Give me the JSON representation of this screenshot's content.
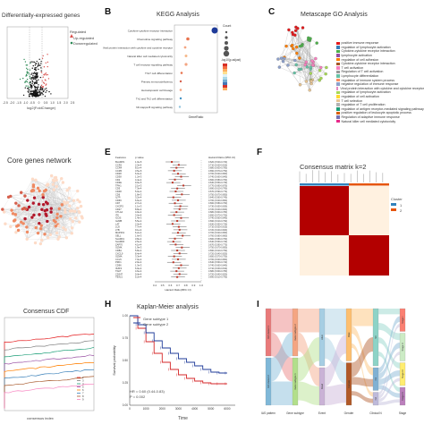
{
  "panels": {
    "A": {
      "label": "",
      "title": "Differentially-expressed genes",
      "legend_title": "Regulated",
      "legend_up": "Up-regulated",
      "legend_down": "Downregulated",
      "xlabel": "log2(FoldChange)",
      "xticks": [
        "-2.5",
        "-2.0",
        "-1.5",
        "-1.0",
        "-0.5",
        "0",
        "0.5",
        "1.0",
        "1.5",
        "2.0",
        "2.5"
      ],
      "colors": {
        "up": "#d9534f",
        "down": "#2e8b57",
        "ns": "#111111"
      }
    },
    "B": {
      "label": "B",
      "title": "KEGG Analysis",
      "terms": [
        "Cytokine-cytokine receptor interaction",
        "Chemokine signaling pathway",
        "Viral protein interaction with cytokine and cytokine receptor",
        "Natural killer cell mediated cytotoxicity",
        "T cell receptor signaling pathway",
        "Th17 cell differentiation",
        "Primary immunodeficiency",
        "Hematopoietic cell lineage",
        "Th1 and Th2 cell differentiation",
        "NF-kappa B signaling pathway"
      ],
      "xlabel": "GeneRatio",
      "legend_count": "Count",
      "legend_padj": "-log10(p.adjust)"
    },
    "C": {
      "label": "C",
      "title": "Metascape GO Analysis",
      "terms": [
        "positive immune response",
        "regulation of lymphocyte activation",
        "Cytokine-cytokine receptor interaction",
        "lymphocyte activation",
        "regulation of cell adhesion",
        "Cytokine-cytokine receptor interaction",
        "T cell activation",
        "Regulation of T cell activation",
        "Lymphocyte differentiation",
        "regulation of immune system process",
        "negative regulation of immune response",
        "Viral protein interaction with cytokine and cytokine receptor",
        "regulation of lymphocyte activation",
        "regulation of cell activation",
        "T cell selection",
        "regulation of T cell proliferation",
        "regulation of antigen receptor-mediated signaling pathway",
        "positive regulation of leukocyte apoptotic process",
        "Regulation of adaptive immune response",
        "Natural killer cell mediated cytotoxicity"
      ],
      "colors": [
        "#e41a1c",
        "#377eb8",
        "#4daf4a",
        "#984ea3",
        "#ff7f00",
        "#a65628",
        "#f781bf",
        "#999999",
        "#66c2a5",
        "#fc8d62",
        "#8da0cb",
        "#e78ac3",
        "#a6d854",
        "#ffd92f",
        "#e5c494",
        "#b3b3b3",
        "#1b9e77",
        "#d95f02",
        "#7570b3",
        "#e7298a"
      ]
    },
    "D": {
      "label": "",
      "title": "Core genes network"
    },
    "E": {
      "label": "E",
      "col_gene": "Features",
      "col_p": "p value",
      "col_hr": "Hazard Ratio (95% CI)",
      "genes": [
        "BLAMP1",
        "CCR2",
        "CCR4",
        "CCR5",
        "CD28",
        "CD38",
        "CD2",
        "CD3E",
        "TPH1",
        "CD5",
        "CD48",
        "CD6",
        "IL7R",
        "CD69",
        "CD7",
        "CXCR3",
        "CD27",
        "CTLA4",
        "ITK",
        "ICOS",
        "IL2RB",
        "LAT",
        "LCK",
        "LTB",
        "MAP4K1",
        "SELL",
        "SLAMF1",
        "SLAMF6",
        "ZAP70",
        "GZMK",
        "CD8A",
        "CXCL9",
        "GZMA",
        "CCL5",
        "PRF1",
        "CD96",
        "IKZF3",
        "TIGIT",
        "CD247",
        "TBX21"
      ],
      "p_values": [
        "1.0e-5",
        "2.3e-4",
        "8.1e-4",
        "3.5e-5",
        "6.0e-4",
        "1.2e-3",
        "4.4e-4",
        "9.9e-5",
        "2.1e-3",
        "7.3e-4",
        "5.0e-4",
        "1.8e-3",
        "3.2e-4",
        "6.6e-4",
        "2.7e-4",
        "1.1e-3",
        "8.8e-4",
        "4.9e-4",
        "3.0e-4",
        "1.4e-3",
        "5.5e-4",
        "2.0e-4",
        "7.7e-4",
        "9.1e-4",
        "6.2e-4",
        "1.6e-3",
        "3.8e-4",
        "2.5e-4",
        "4.1e-4",
        "1.9e-3",
        "5.8e-4",
        "8.4e-4",
        "3.3e-4",
        "7.0e-4",
        "2.9e-4",
        "1.3e-3",
        "6.9e-4",
        "4.6e-4",
        "9.4e-4",
        "5.2e-4"
      ],
      "hr": [
        0.62,
        0.71,
        0.68,
        0.65,
        0.7,
        0.74,
        0.66,
        0.63,
        0.77,
        0.69,
        0.67,
        0.75,
        0.64,
        0.7,
        0.66,
        0.73,
        0.72,
        0.68,
        0.65,
        0.74,
        0.69,
        0.63,
        0.71,
        0.72,
        0.7,
        0.76,
        0.66,
        0.64,
        0.67,
        0.75,
        0.69,
        0.72,
        0.65,
        0.7,
        0.64,
        0.74,
        0.71,
        0.68,
        0.72,
        0.69
      ],
      "xlabel": "Hazard Ratio(95% CI)",
      "xticks": [
        "0.4",
        "0.5",
        "0.6",
        "0.7",
        "0.8",
        "0.9",
        "1.0"
      ]
    },
    "F": {
      "label": "F",
      "title": "Consensus matrix k=2",
      "legend_title": "Cluster",
      "legend_items": [
        "1",
        "2"
      ],
      "colors": {
        "red": "#b30000",
        "cream": "#fff1e0",
        "c1": "#3182bd",
        "c2": "#e6550d"
      }
    },
    "G": {
      "label": "",
      "title": "Consensus CDF",
      "xlabel": "consensus index",
      "k_labels": [
        "2",
        "3",
        "4",
        "5",
        "6",
        "7",
        "8",
        "9"
      ]
    },
    "H": {
      "label": "H",
      "title": "Kaplan-Meier analysis",
      "legend_1": "Gene subtype 1",
      "legend_2": "Gene subtype 2",
      "ylabel": "Survival probability",
      "xlabel": "Time",
      "xticks": [
        "0",
        "1000",
        "2000",
        "3000",
        "4000",
        "5000",
        "6000"
      ],
      "yticks": [
        "0.00",
        "0.25",
        "0.50",
        "0.75",
        "1.00"
      ],
      "hr_text": "HR = 0.60 (0.44-0.83)",
      "p_text": "P = 0.002",
      "colors": {
        "s1": "#d62728",
        "s2": "#1f3b99"
      },
      "chart_data": {
        "type": "line",
        "x": [
          0,
          500,
          1000,
          1500,
          2000,
          2500,
          3000,
          3500,
          4000,
          4500,
          5000,
          5500,
          6000
        ],
        "series": [
          {
            "name": "Gene subtype 1",
            "values": [
              1.0,
              0.86,
              0.71,
              0.58,
              0.48,
              0.4,
              0.34,
              0.3,
              0.27,
              0.25,
              0.24,
              0.24,
              0.24
            ]
          },
          {
            "name": "Gene subtype 2",
            "values": [
              1.0,
              0.9,
              0.81,
              0.72,
              0.64,
              0.58,
              0.52,
              0.48,
              0.44,
              0.4,
              0.37,
              0.36,
              0.36
            ]
          }
        ],
        "xlim": [
          0,
          6500
        ],
        "ylim": [
          0,
          1
        ]
      }
    },
    "I": {
      "label": "I",
      "axes": [
        "IAS pattern",
        "Gene subtype",
        "Event",
        "Gender",
        "Clinical N",
        "Stage"
      ],
      "node_labels": [
        "IAS cluster 1",
        "IAS cluster 2",
        "Gene subtype 2",
        "Gene subtype 1",
        "Alive",
        "Dead",
        "Male",
        "Female",
        "N0",
        "N1",
        "N2",
        "Stage I",
        "Stage II",
        "Stage III",
        "Stage IV"
      ],
      "colors": [
        "#e97a7a",
        "#7fb8d8",
        "#f4a582",
        "#b2df8a",
        "#a6cee3",
        "#cab2d6",
        "#fdbf6f",
        "#b15928",
        "#8dd3c7",
        "#80b1d3",
        "#bebada",
        "#fb8072",
        "#ccebc5",
        "#ffed6f",
        "#bc80bd"
      ]
    }
  }
}
